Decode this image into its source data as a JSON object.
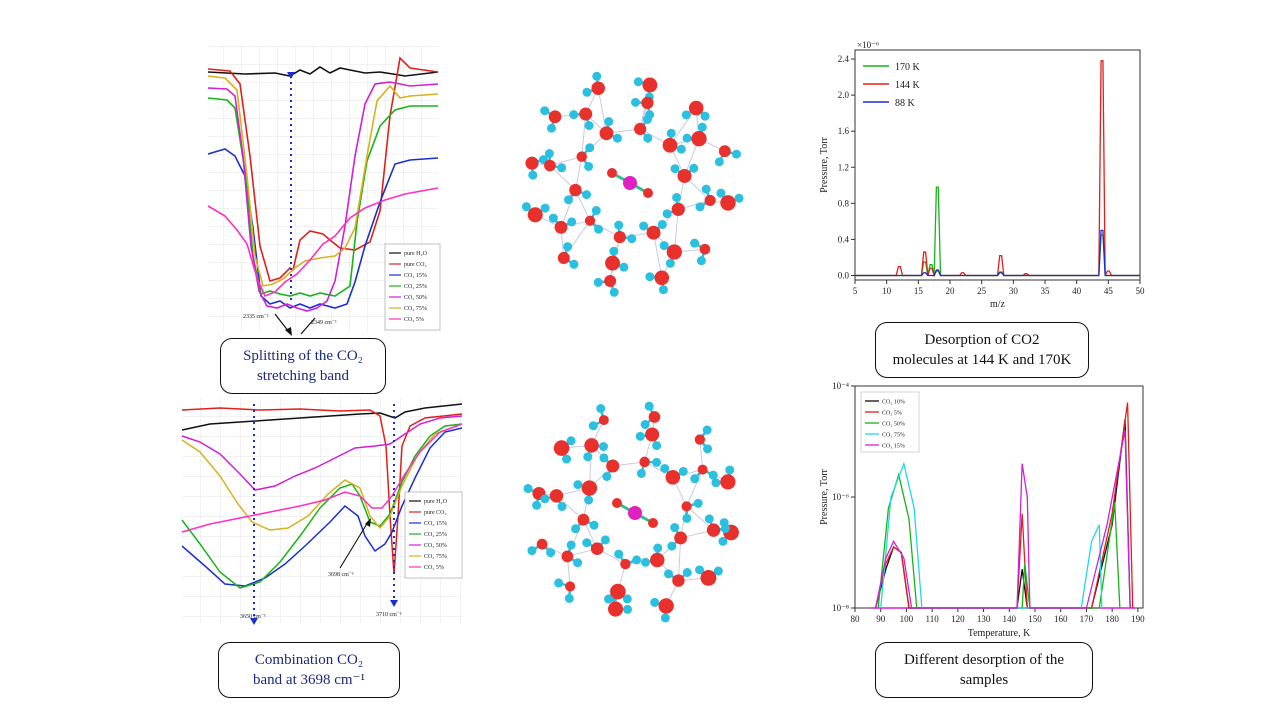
{
  "captions": {
    "top_left": {
      "line1": "Splitting of the CO₂",
      "line2": "stretching band"
    },
    "bottom_left": {
      "line1": "Combination CO₂",
      "line2": "band at 3698 cm⁻¹"
    },
    "top_right": {
      "line1": "Desorption of CO2",
      "line2": "molecules at 144 K and 170K"
    },
    "bottom_right": {
      "line1": "Different desorption of the",
      "line2": "samples"
    }
  },
  "ir_top": {
    "annotations": {
      "left": "2335 cm⁻¹",
      "right": "2349 cm⁻¹"
    },
    "legend": [
      "pure H₂O",
      "pure CO₂",
      "CO₂ 15%",
      "CO₂ 25%",
      "CO₂ 50%",
      "CO₂ 75%",
      "CO₂ 5%"
    ]
  },
  "ir_bottom": {
    "annotations": {
      "left": "3650 cm⁻¹",
      "mid": "3698 cm⁻¹",
      "right": "3710 cm⁻¹"
    },
    "legend": [
      "pure H₂O",
      "pure CO₂",
      "CO₂ 15%",
      "CO₂ 25%",
      "CO₂ 50%",
      "CO₂ 75%",
      "CO₂ 5%"
    ]
  },
  "colors": {
    "black": "#111111",
    "red": "#e0201c",
    "blue": "#1a2fd0",
    "green": "#18b418",
    "magenta": "#d020d8",
    "yellow": "#d8b020",
    "pink": "#ff30c0",
    "cyan": "#20d8e8",
    "atom_oxygen": "#e8302c",
    "atom_hydrogen": "#2bc0e0",
    "atom_center": "#e020c0"
  },
  "chart_data": [
    {
      "type": "line",
      "title": "",
      "xlabel": "m/z",
      "ylabel": "Pressure, Torr",
      "y_multiplier_label": "×10⁻⁶",
      "xlim": [
        5,
        50
      ],
      "ylim": [
        -0.05,
        2.5
      ],
      "xticks": [
        5,
        10,
        15,
        20,
        25,
        30,
        35,
        40,
        45,
        50
      ],
      "yticks": [
        "0.0",
        "0.4",
        "0.8",
        "1.2",
        "1.6",
        "2.0",
        "2.4"
      ],
      "legend_position": "top-left",
      "series": [
        {
          "name": "170 K",
          "color": "#18b418",
          "peaks": [
            [
              16,
              0.15
            ],
            [
              17,
              0.12
            ],
            [
              18,
              0.98
            ],
            [
              28,
              0.04
            ],
            [
              44,
              0.45
            ]
          ]
        },
        {
          "name": "144 K",
          "color": "#e0201c",
          "peaks": [
            [
              12,
              0.1
            ],
            [
              16,
              0.26
            ],
            [
              17,
              0.08
            ],
            [
              18,
              0.05
            ],
            [
              22,
              0.03
            ],
            [
              28,
              0.22
            ],
            [
              32,
              0.02
            ],
            [
              44,
              2.38
            ],
            [
              45,
              0.05
            ]
          ]
        },
        {
          "name": "88 K",
          "color": "#1a2fd0",
          "peaks": [
            [
              16,
              0.03
            ],
            [
              18,
              0.06
            ],
            [
              28,
              0.03
            ],
            [
              44,
              0.5
            ]
          ]
        }
      ]
    },
    {
      "type": "line",
      "title": "",
      "xlabel": "Temperature, K",
      "ylabel": "Pressure, Torr",
      "xlim": [
        80,
        192
      ],
      "ylim_log": [
        -8,
        -4
      ],
      "xticks": [
        80,
        90,
        100,
        110,
        120,
        130,
        140,
        150,
        160,
        170,
        180,
        190
      ],
      "yticks": [
        "10⁻⁸",
        "10⁻⁶",
        "10⁻⁴"
      ],
      "legend_position": "top-left",
      "series": [
        {
          "name": "CO₂ 10%",
          "color": "#111111",
          "points": [
            [
              88,
              -8
            ],
            [
              92,
              -7.3
            ],
            [
              95,
              -6.9
            ],
            [
              98,
              -7.0
            ],
            [
              101,
              -8
            ],
            [
              143,
              -8
            ],
            [
              145,
              -7.3
            ],
            [
              147,
              -8
            ],
            [
              172,
              -8
            ],
            [
              180,
              -6.5
            ],
            [
              185,
              -4.6
            ],
            [
              187,
              -8
            ]
          ]
        },
        {
          "name": "CO₂ 5%",
          "color": "#e0201c",
          "points": [
            [
              88,
              -8
            ],
            [
              92,
              -7.2
            ],
            [
              95,
              -6.9
            ],
            [
              98,
              -7.0
            ],
            [
              101,
              -8
            ],
            [
              143,
              -8
            ],
            [
              145,
              -6.3
            ],
            [
              147,
              -8
            ],
            [
              172,
              -8
            ],
            [
              180,
              -6.3
            ],
            [
              186,
              -4.3
            ],
            [
              188,
              -8
            ]
          ]
        },
        {
          "name": "CO₂ 50%",
          "color": "#18b418",
          "points": [
            [
              89,
              -8
            ],
            [
              93,
              -6.2
            ],
            [
              97,
              -5.6
            ],
            [
              101,
              -6.4
            ],
            [
              104,
              -8
            ],
            [
              145,
              -8
            ],
            [
              146,
              -7.2
            ],
            [
              148,
              -8
            ],
            [
              175,
              -8
            ],
            [
              181,
              -6.1
            ],
            [
              183,
              -8
            ]
          ]
        },
        {
          "name": "CO₂ 75%",
          "color": "#20d8e8",
          "points": [
            [
              90,
              -8
            ],
            [
              94,
              -6.0
            ],
            [
              99,
              -5.4
            ],
            [
              103,
              -6.2
            ],
            [
              106,
              -8
            ],
            [
              168,
              -8
            ],
            [
              172,
              -6.8
            ],
            [
              175,
              -6.5
            ],
            [
              176,
              -8
            ]
          ]
        },
        {
          "name": "CO₂ 15%",
          "color": "#d020d8",
          "points": [
            [
              88,
              -8
            ],
            [
              92,
              -7.1
            ],
            [
              95,
              -6.8
            ],
            [
              99,
              -7.1
            ],
            [
              102,
              -8
            ],
            [
              143,
              -8
            ],
            [
              145,
              -5.4
            ],
            [
              147,
              -6.0
            ],
            [
              148,
              -8
            ],
            [
              170,
              -8
            ],
            [
              178,
              -6.5
            ],
            [
              185,
              -4.8
            ],
            [
              187,
              -8
            ]
          ]
        }
      ]
    }
  ]
}
